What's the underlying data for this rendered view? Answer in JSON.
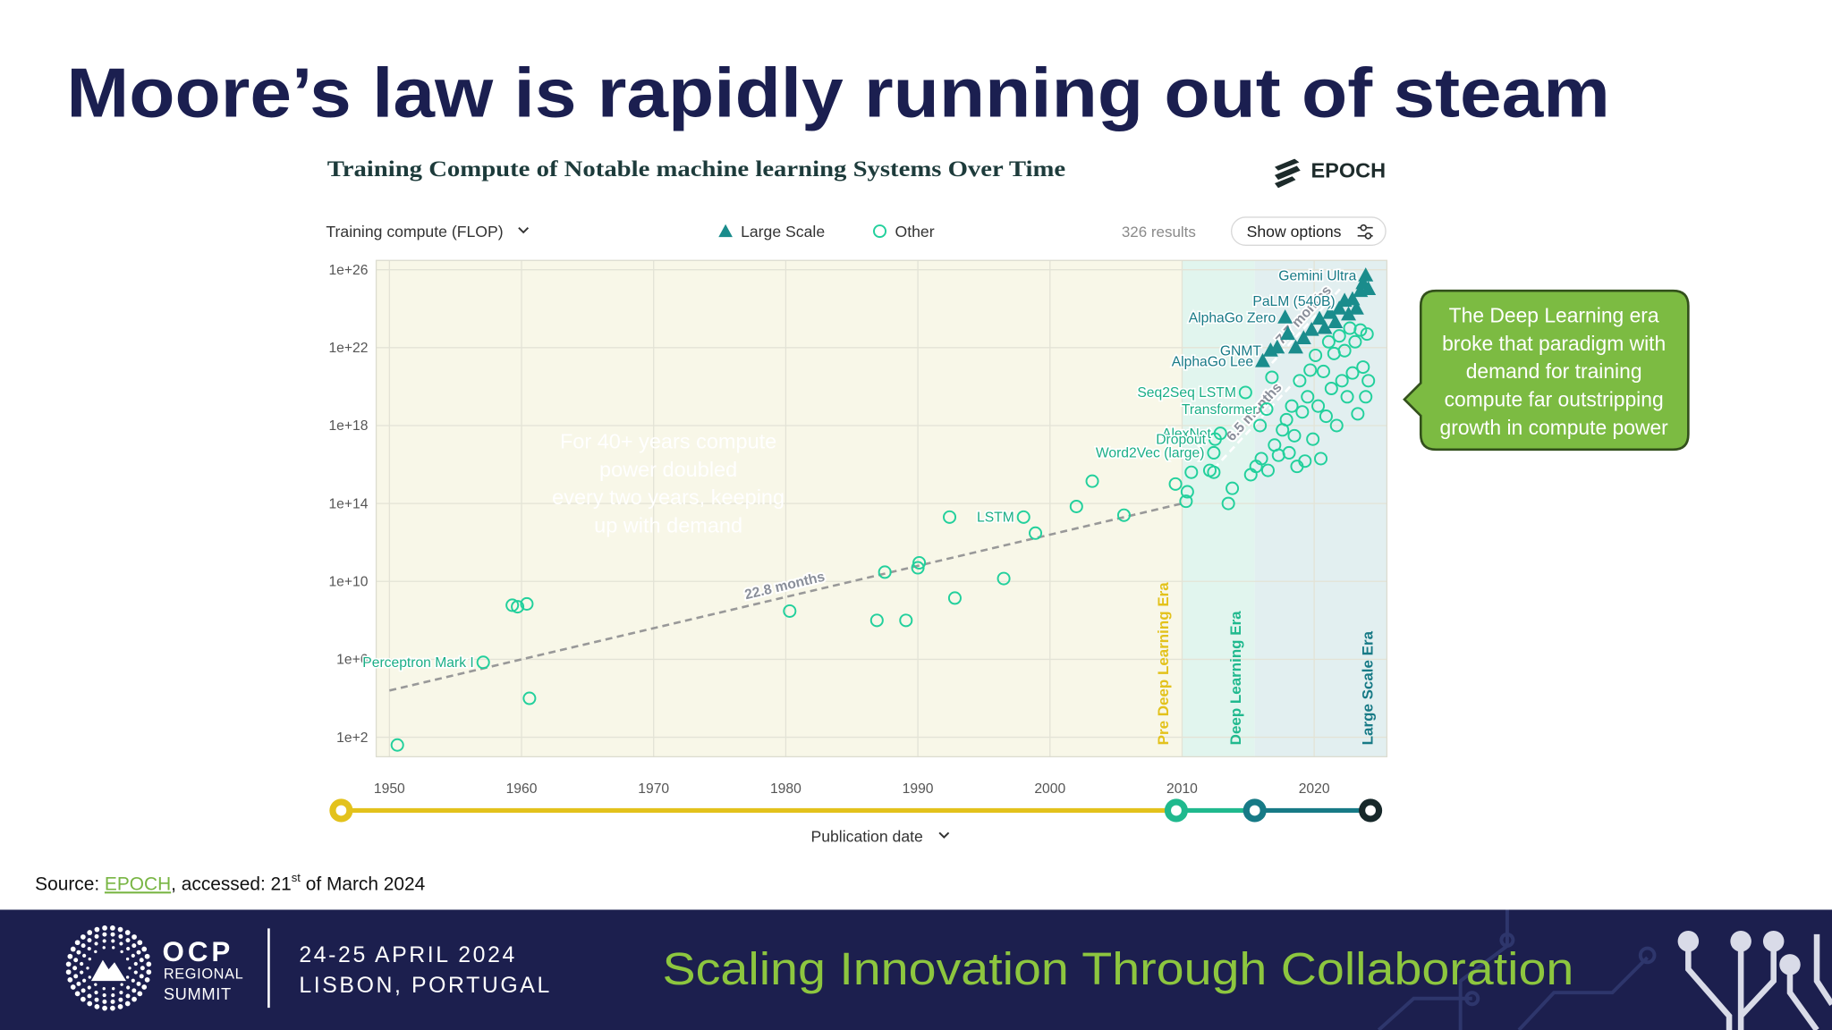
{
  "slide": {
    "title": "Moore’s law is rapidly running out of steam",
    "left_callout": [
      "For 40+ years compute",
      "power doubled",
      "every two years, keeping",
      "up with demand"
    ],
    "right_callout": [
      "The Deep Learning era",
      "broke that paradigm with",
      "demand for training",
      "compute far outstripping",
      "growth in compute power"
    ],
    "source": {
      "prefix": "Source: ",
      "link": "EPOCH",
      "middle": ", accessed: 21",
      "sup": "st",
      "suffix": " of March 2024"
    }
  },
  "footer": {
    "logo": "OCP",
    "logo_line1": "REGIONAL",
    "logo_line2": "SUMMIT",
    "date": "24-25 APRIL 2024",
    "place": "LISBON, PORTUGAL",
    "tagline": "Scaling Innovation Through Collaboration"
  },
  "chart_data": {
    "type": "scatter",
    "title": "Training Compute of Notable machine learning Systems Over Time",
    "brand": "EPOCH",
    "y_selector": "Training compute (FLOP)",
    "results": "326 results",
    "options_button": "Show options",
    "xlabel": "Publication date",
    "xlim": [
      1949,
      2025.5
    ],
    "xticks": [
      1950,
      1960,
      1970,
      1980,
      1990,
      2000,
      2010,
      2020
    ],
    "ylim": [
      10,
      3e+26
    ],
    "yticks": [
      {
        "value": 100.0,
        "label": "1e+2"
      },
      {
        "value": 1000000.0,
        "label": "1e+6"
      },
      {
        "value": 10000000000.0,
        "label": "1e+10"
      },
      {
        "value": 100000000000000.0,
        "label": "1e+14"
      },
      {
        "value": 1e+18,
        "label": "1e+18"
      },
      {
        "value": 1e+22,
        "label": "1e+22"
      },
      {
        "value": 1e+26,
        "label": "1e+26"
      }
    ],
    "log_y": true,
    "grid": true,
    "eras": [
      {
        "name": "Pre Deep Learning Era",
        "color": "#e3c21c",
        "bg": "#f8f7e8"
      },
      {
        "name": "Deep Learning Era",
        "start": 2010,
        "color": "#20b98e",
        "bg": "#e1f5ee"
      },
      {
        "name": "Large Scale Era",
        "start": 2015.5,
        "color": "#177a86",
        "bg": "#e2eff0"
      }
    ],
    "trends": [
      {
        "label": "22.8 months",
        "x": [
          1950,
          2010
        ],
        "y": [
          25000.0,
          100000000000000.0
        ],
        "color": "#999999"
      },
      {
        "label": "6.5 months",
        "x": [
          2012.4,
          2019
        ],
        "y": [
          6000000000000000.0,
          4e+20
        ],
        "color": "#ffffff"
      },
      {
        "label": "7.7 months",
        "x": [
          2016.8,
          2022.1
        ],
        "y": [
          1.6e+21,
          1.3e+25
        ],
        "color": "#ffffff"
      }
    ],
    "series": [
      {
        "name": "Large Scale",
        "marker": "triangle",
        "color": "#1a8c8c",
        "x": [
          2016.7,
          2016.1,
          2017.8,
          2022.3,
          2023.9,
          2017.2,
          2018.0,
          2018.6,
          2019.2,
          2019.8,
          2020.4,
          2020.8,
          2021.2,
          2021.6,
          2021.9,
          2022.6,
          2022.9,
          2023.2,
          2023.5,
          2023.7,
          2024.1
        ],
        "values": [
          7e+21,
          2e+21,
          3.5e+23,
          2.5e+24,
          5e+25,
          1e+22,
          5e+22,
          1e+22,
          3e+22,
          8e+22,
          3e+23,
          1e+23,
          6e+23,
          2e+23,
          1e+24,
          5e+23,
          3e+24,
          1e+24,
          8e+24,
          2e+25,
          1e+25
        ],
        "labels": [
          "GNMT",
          "AlphaGo Lee",
          "AlphaGo Zero",
          "PaLM (540B)",
          "Gemini Ultra",
          null,
          null,
          null,
          null,
          null,
          null,
          null,
          null,
          null,
          null,
          null,
          null,
          null,
          null,
          null,
          null
        ]
      },
      {
        "name": "Other",
        "marker": "circle",
        "color": "#22d09c",
        "x": [
          1950.6,
          1957.1,
          1960.6,
          1959.3,
          1959.7,
          1960.4,
          1980.3,
          1986.9,
          1989.1,
          1987.5,
          1990.0,
          1990.1,
          1992.8,
          1992.4,
          1996.5,
          1998.0,
          1998.9,
          2002.0,
          2003.2,
          2005.6,
          2009.5,
          2010.3,
          2010.4,
          2010.7,
          2012.1,
          2012.4,
          2013.5,
          2013.8,
          2012.4,
          2012.9,
          2012.5,
          2014.8,
          2016.4,
          2015.2,
          2015.6,
          2016.0,
          2016.5,
          2017.0,
          2017.3,
          2017.6,
          2017.9,
          2018.1,
          2018.3,
          2018.5,
          2018.7,
          2018.9,
          2019.1,
          2019.3,
          2019.5,
          2019.7,
          2019.9,
          2020.1,
          2020.3,
          2020.5,
          2020.7,
          2020.9,
          2021.1,
          2021.3,
          2021.5,
          2021.7,
          2021.9,
          2022.1,
          2022.3,
          2022.5,
          2022.7,
          2022.9,
          2023.1,
          2023.3,
          2023.5,
          2023.7,
          2023.9,
          2024.0,
          2024.1,
          2016.8,
          2015.9
        ],
        "values": [
          40,
          700000.0,
          10000.0,
          600000000.0,
          500000000.0,
          700000000.0,
          300000000.0,
          100000000.0,
          100000000.0,
          30000000000.0,
          50000000000.0,
          90000000000.0,
          1400000000.0,
          20000000000000.0,
          14000000000.0,
          20000000000000.0,
          3000000000000.0,
          70000000000000.0,
          1400000000000000.0,
          25000000000000.0,
          1000000000000000.0,
          130000000000000.0,
          400000000000000.0,
          4000000000000000.0,
          5000000000000000.0,
          4000000000000000.0,
          100000000000000.0,
          600000000000000.0,
          4e+16,
          4e+17,
          2e+17,
          5e+19,
          7e+18,
          3000000000000000.0,
          8000000000000000.0,
          2e+16,
          5000000000000000.0,
          1e+17,
          3e+16,
          6e+17,
          2e+18,
          4e+16,
          1e+19,
          3e+17,
          8000000000000000.0,
          2e+20,
          5e+18,
          1.5e+16,
          3e+19,
          7e+20,
          2e+17,
          4e+21,
          1e+19,
          2e+16,
          6e+20,
          3e+18,
          2e+22,
          8e+19,
          5e+21,
          1e+18,
          4e+22,
          2e+20,
          7e+21,
          3e+19,
          1e+23,
          5e+20,
          2e+22,
          4e+18,
          8e+22,
          1e+21,
          3e+19,
          5e+22,
          2e+20,
          3e+20,
          1e+18
        ],
        "labels": [
          null,
          "Perceptron Mark I",
          null,
          null,
          null,
          null,
          null,
          null,
          null,
          null,
          null,
          null,
          null,
          null,
          null,
          "LSTM",
          null,
          null,
          null,
          null,
          null,
          null,
          null,
          null,
          null,
          null,
          null,
          null,
          "Word2Vec (large)",
          "AlexNet",
          "Dropout",
          "Seq2Seq LSTM",
          "Transformer",
          null,
          null,
          null,
          null,
          null,
          null,
          null,
          null,
          null,
          null,
          null,
          null,
          null,
          null,
          null,
          null,
          null,
          null,
          null,
          null,
          null,
          null,
          null,
          null,
          null,
          null,
          null,
          null,
          null,
          null,
          null,
          null,
          null,
          null,
          null,
          null,
          null,
          null,
          null,
          null,
          null,
          null
        ]
      }
    ]
  }
}
